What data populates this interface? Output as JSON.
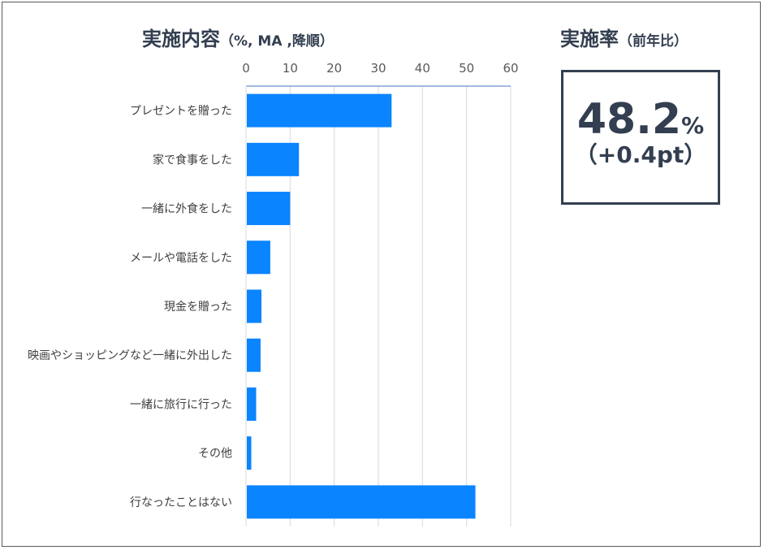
{
  "header": {
    "chart_title": "実施内容",
    "chart_title_suffix": "（%, MA ,降順）",
    "rate_title": "実施率",
    "rate_title_suffix": "（前年比）"
  },
  "rate": {
    "value": "48.2",
    "unit": "%",
    "change": "（+0.4pt）",
    "border_color": "#333f50"
  },
  "chart_data": {
    "type": "bar",
    "orientation": "horizontal",
    "categories": [
      "プレゼントを贈った",
      "家で食事をした",
      "一緒に外食をした",
      "メールや電話をした",
      "現金を贈った",
      "映画やショッピングなど一緒に外出した",
      "一緒に旅行に行った",
      "その他",
      "行なったことはない"
    ],
    "values": [
      33,
      12,
      10,
      5.5,
      3.5,
      3.3,
      2.3,
      1.2,
      52
    ],
    "xlim": [
      0,
      60
    ],
    "xticks": [
      0,
      10,
      20,
      30,
      40,
      50,
      60
    ],
    "x_axis_position": "top",
    "grid": true,
    "bar_color": "#0a84ff"
  }
}
